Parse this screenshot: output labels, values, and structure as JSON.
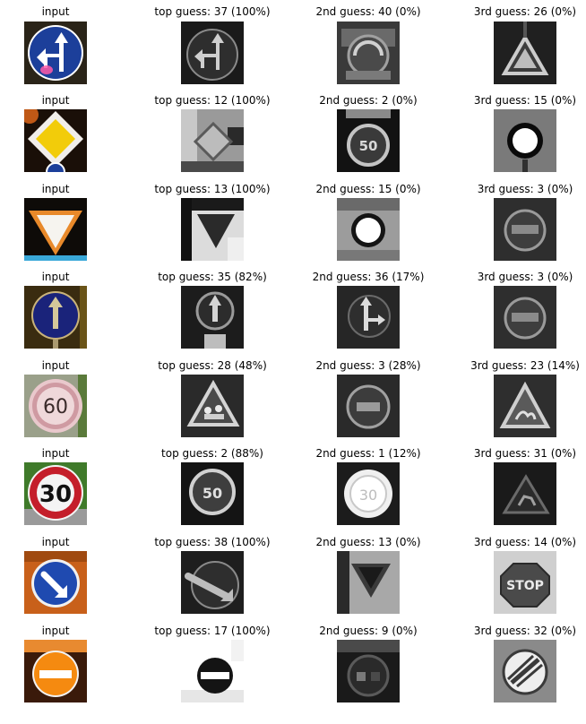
{
  "rows": [
    {
      "input_title": "input",
      "top_title": "top guess: 37 (100%)",
      "second_title": "2nd guess: 40 (0%)",
      "third_title": "3rd guess: 26 (0%)",
      "input_sign": "straight-or-left-blue-sign",
      "top_img": "straight-or-left-grayscale",
      "second_img": "roundabout-grayscale",
      "third_img": "traffic-signals-triangle-grayscale"
    },
    {
      "input_title": "input",
      "top_title": "top guess: 12 (100%)",
      "second_title": "2nd guess: 2 (0%)",
      "third_title": "3rd guess: 15 (0%)",
      "input_sign": "priority-road-sign",
      "top_img": "priority-road-grayscale",
      "second_img": "speed-limit-50-grayscale",
      "third_img": "no-vehicles-grayscale"
    },
    {
      "input_title": "input",
      "top_title": "top guess: 13 (100%)",
      "second_title": "2nd guess: 15 (0%)",
      "third_title": "3rd guess: 3 (0%)",
      "input_sign": "yield-sign",
      "top_img": "yield-grayscale",
      "second_img": "no-vehicles-grayscale",
      "third_img": "speed-limit-60-grayscale"
    },
    {
      "input_title": "input",
      "top_title": "top guess: 35 (82%)",
      "second_title": "2nd guess: 36 (17%)",
      "third_title": "3rd guess: 3 (0%)",
      "input_sign": "ahead-only-blue-sign",
      "top_img": "ahead-only-grayscale",
      "second_img": "straight-or-right-grayscale",
      "third_img": "speed-limit-60-grayscale"
    },
    {
      "input_title": "input",
      "top_title": "top guess: 28 (48%)",
      "second_title": "2nd guess: 3 (28%)",
      "third_title": "3rd guess: 23 (14%)",
      "input_sign": "speed-limit-60-sign",
      "input_text": "60",
      "top_img": "children-crossing-grayscale",
      "second_img": "speed-limit-60-grayscale",
      "third_img": "slippery-road-grayscale"
    },
    {
      "input_title": "input",
      "top_title": "top guess: 2 (88%)",
      "second_title": "2nd guess: 1 (12%)",
      "third_title": "3rd guess: 31 (0%)",
      "input_sign": "speed-limit-30-sign",
      "input_text": "30",
      "top_img": "speed-limit-50-grayscale",
      "second_img": "speed-limit-30-grayscale",
      "third_img": "wild-animals-grayscale"
    },
    {
      "input_title": "input",
      "top_title": "top guess: 38 (100%)",
      "second_title": "2nd guess: 13 (0%)",
      "third_title": "3rd guess: 14 (0%)",
      "input_sign": "keep-right-blue-sign",
      "top_img": "keep-right-grayscale",
      "second_img": "yield-grayscale",
      "third_img": "stop-grayscale",
      "third_text": "STOP"
    },
    {
      "input_title": "input",
      "top_title": "top guess: 17 (100%)",
      "second_title": "2nd guess: 9 (0%)",
      "third_title": "3rd guess: 32 (0%)",
      "input_sign": "no-entry-sign",
      "top_img": "no-entry-grayscale",
      "second_img": "no-passing-grayscale",
      "third_img": "end-of-limits-grayscale"
    }
  ]
}
